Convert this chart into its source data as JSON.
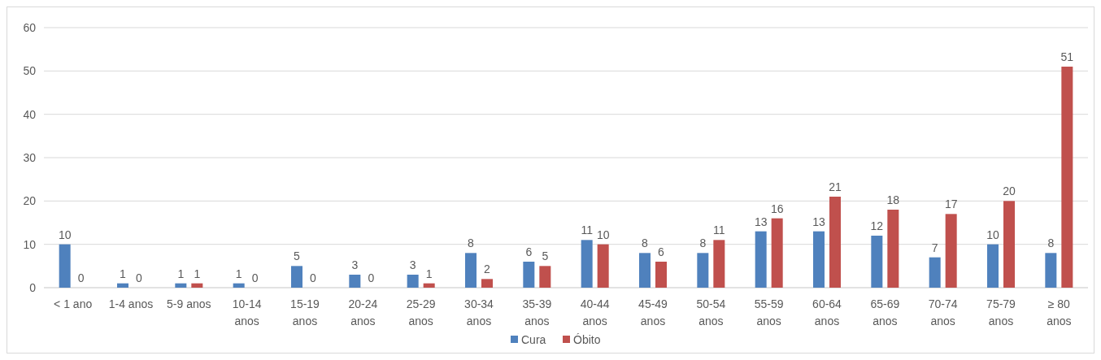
{
  "chart_data": {
    "type": "bar",
    "categories": [
      "< 1 ano",
      "1-4 anos",
      "5-9 anos",
      "10-14 anos",
      "15-19 anos",
      "20-24 anos",
      "25-29 anos",
      "30-34 anos",
      "35-39 anos",
      "40-44 anos",
      "45-49 anos",
      "50-54 anos",
      "55-59 anos",
      "60-64 anos",
      "65-69 anos",
      "70-74 anos",
      "75-79 anos",
      "≥ 80 anos"
    ],
    "series": [
      {
        "name": "Cura",
        "color": "#4f81bd",
        "values": [
          10,
          1,
          1,
          1,
          5,
          3,
          3,
          8,
          6,
          11,
          8,
          8,
          13,
          13,
          12,
          7,
          10,
          8
        ]
      },
      {
        "name": "Óbito",
        "color": "#c0504d",
        "values": [
          0,
          0,
          1,
          0,
          0,
          0,
          1,
          2,
          5,
          10,
          6,
          11,
          16,
          21,
          18,
          17,
          20,
          51
        ]
      }
    ],
    "ylim": [
      0,
      60
    ],
    "yticks": [
      0,
      10,
      20,
      30,
      40,
      50,
      60
    ],
    "grid": "y",
    "legend": "bottom",
    "data_labels": true
  }
}
